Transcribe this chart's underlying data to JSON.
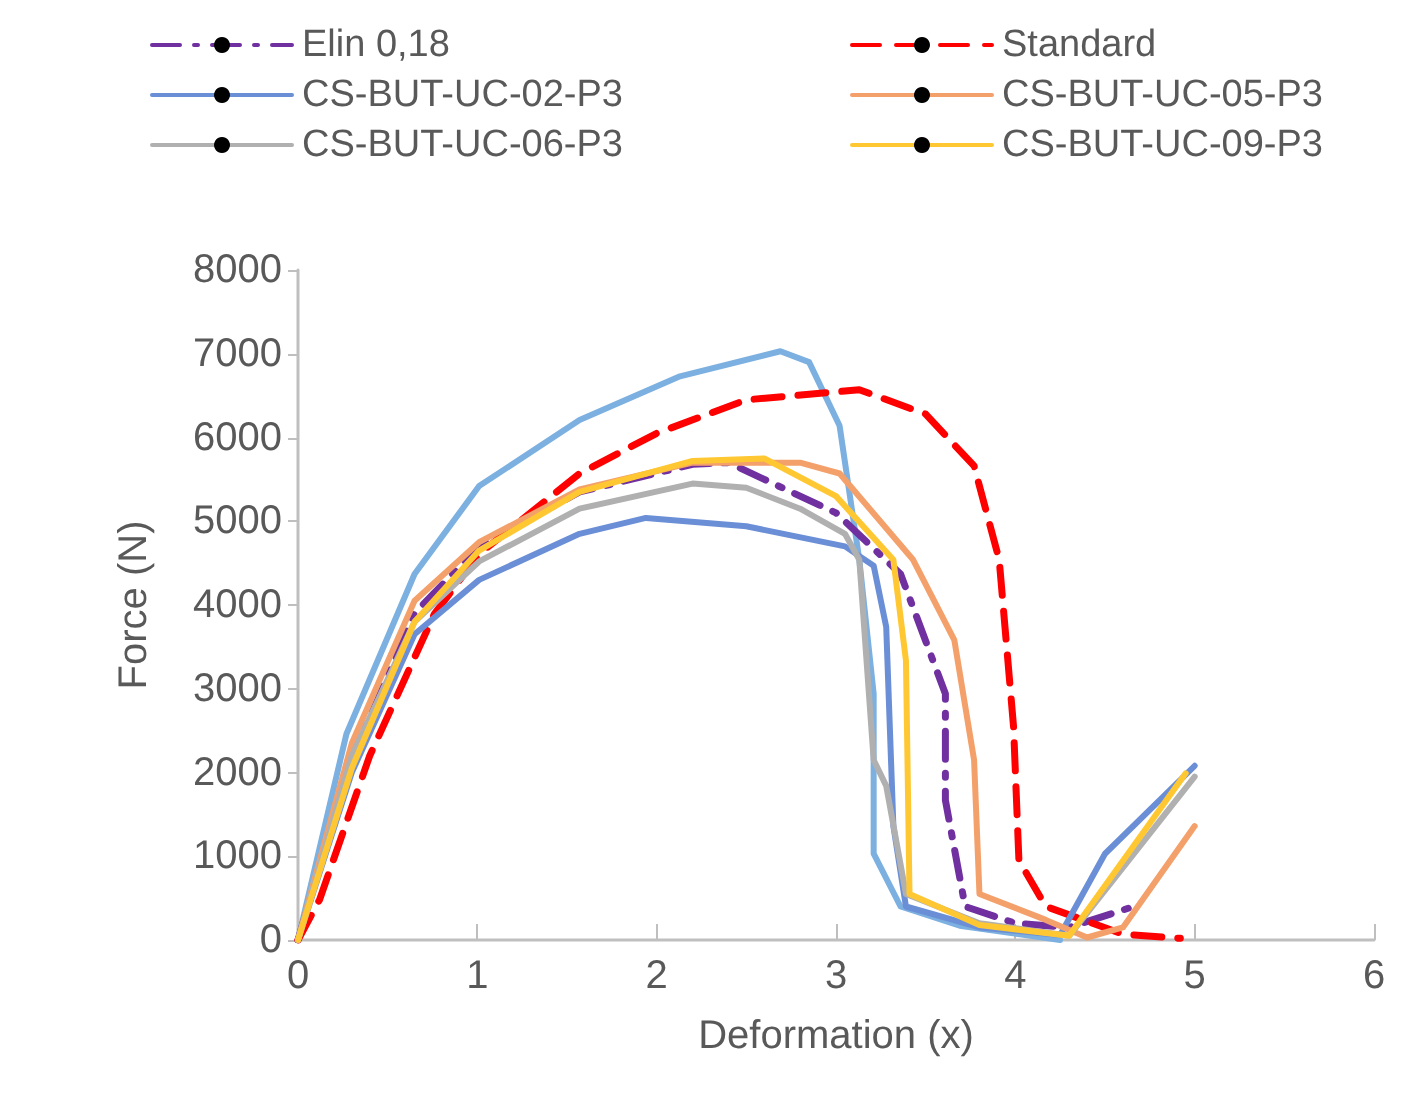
{
  "chart_data": {
    "type": "line",
    "xlabel": "Deformation (x)",
    "ylabel": "Force (N)",
    "xlim": [
      0,
      6
    ],
    "xticks": [
      0,
      1,
      2,
      3,
      4,
      5,
      6
    ],
    "ylim": [
      0,
      8000
    ],
    "yticks": [
      0,
      1000,
      2000,
      3000,
      4000,
      5000,
      6000,
      7000,
      8000
    ],
    "grid": false,
    "legend": "top",
    "marker": "none",
    "series": [
      {
        "name": "Elin 0,18",
        "color": "#7030a0",
        "line_style": "dotted",
        "x": [
          0,
          0.3,
          0.65,
          1.01,
          1.57,
          2.2,
          2.4,
          2.6,
          3.0,
          3.36,
          3.61,
          3.61,
          3.72,
          4.0,
          4.3,
          4.66
        ],
        "values": [
          0,
          2150,
          3900,
          4700,
          5350,
          5680,
          5700,
          5500,
          5100,
          4370,
          2940,
          1670,
          400,
          200,
          150,
          400
        ]
      },
      {
        "name": "Standard",
        "color": "#ff0000",
        "line_style": "dashed",
        "x": [
          0,
          0.12,
          0.4,
          0.76,
          1.01,
          1.57,
          2.0,
          2.5,
          3.13,
          3.5,
          3.77,
          3.91,
          3.99,
          4.02,
          4.17,
          4.6,
          4.92
        ],
        "values": [
          0,
          480,
          2200,
          3890,
          4610,
          5570,
          6050,
          6450,
          6570,
          6280,
          5660,
          4540,
          2550,
          950,
          400,
          70,
          20
        ]
      },
      {
        "name": "CS-BUT-UC-02-P3",
        "color": "#6b8fd6",
        "line_style": "solid",
        "x": [
          0,
          0.3,
          0.65,
          1.01,
          1.57,
          1.94,
          2.5,
          3.05,
          3.21,
          3.28,
          3.32,
          3.39,
          3.8,
          4.25,
          4.5,
          5.0
        ],
        "values": [
          0,
          2000,
          3650,
          4300,
          4850,
          5040,
          4940,
          4700,
          4470,
          3740,
          1360,
          400,
          150,
          60,
          1030,
          2080
        ]
      },
      {
        "name": "CS-BUT-UC-05-P3",
        "color": "#f4a06a",
        "line_style": "solid",
        "x": [
          0,
          0.3,
          0.65,
          1.01,
          1.57,
          2.2,
          2.8,
          3.02,
          3.43,
          3.66,
          3.77,
          3.8,
          4.17,
          4.4,
          4.6,
          5.0
        ],
        "values": [
          0,
          2350,
          4050,
          4750,
          5380,
          5700,
          5700,
          5570,
          4540,
          3580,
          2150,
          550,
          240,
          30,
          150,
          1360
        ]
      },
      {
        "name": "CS-BUT-UC-06-P3",
        "color": "#b0b0b0",
        "line_style": "solid",
        "x": [
          0,
          0.3,
          0.65,
          1.01,
          1.57,
          2.2,
          2.5,
          2.8,
          3.05,
          3.13,
          3.21,
          3.28,
          3.39,
          3.8,
          4.3,
          5.0
        ],
        "values": [
          0,
          2200,
          3800,
          4520,
          5150,
          5450,
          5400,
          5150,
          4850,
          4540,
          2150,
          1840,
          550,
          200,
          50,
          1950
        ]
      },
      {
        "name": "CS-BUT-UC-09-P3",
        "color": "#ffc832",
        "line_style": "solid",
        "x": [
          0,
          0.3,
          0.65,
          1.01,
          1.57,
          2.2,
          2.6,
          3.0,
          3.32,
          3.39,
          3.41,
          3.8,
          4.3,
          4.95
        ],
        "values": [
          0,
          2050,
          3800,
          4650,
          5350,
          5720,
          5750,
          5300,
          4540,
          3340,
          550,
          180,
          50,
          1990
        ]
      },
      {
        "color": "#7cb0e0",
        "line_style": "solid",
        "x": [
          0,
          0.27,
          0.65,
          1.01,
          1.57,
          2.13,
          2.69,
          2.85,
          3.02,
          3.13,
          3.21,
          3.21,
          3.36,
          3.69,
          4.25
        ],
        "values": [
          0,
          2460,
          4370,
          5420,
          6210,
          6730,
          7030,
          6900,
          6140,
          4540,
          2940,
          1030,
          400,
          170,
          0
        ]
      }
    ]
  }
}
